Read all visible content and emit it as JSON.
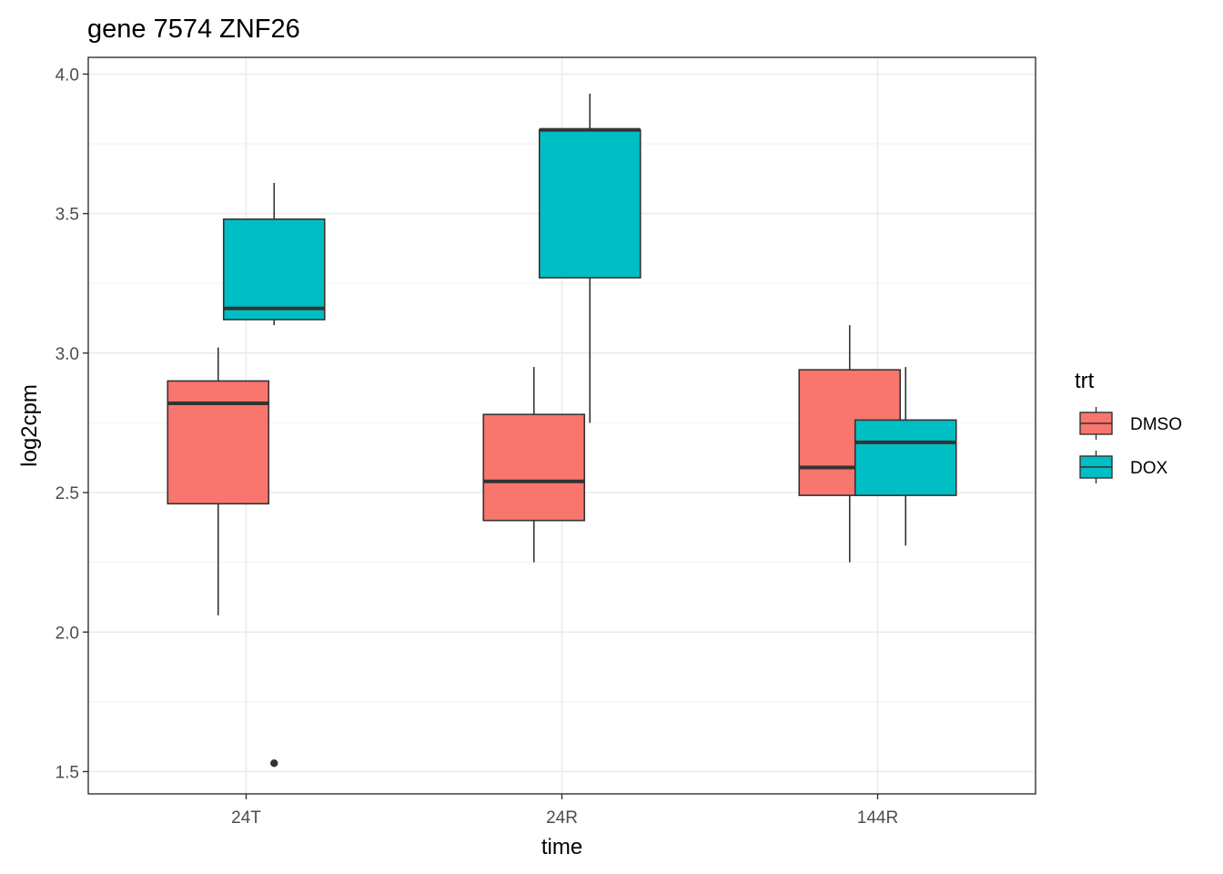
{
  "chart_data": {
    "type": "boxplot",
    "title": "gene 7574 ZNF26",
    "xlabel": "time",
    "ylabel": "log2cpm",
    "categories": [
      "24T",
      "24R",
      "144R"
    ],
    "ylim": [
      1.42,
      4.06
    ],
    "y_ticks": [
      1.5,
      2.0,
      2.5,
      3.0,
      3.5,
      4.0
    ],
    "y_tick_labels": [
      "1.5",
      "2.0",
      "2.5",
      "3.0",
      "3.5",
      "4.0"
    ],
    "grid": true,
    "legend": {
      "title": "trt",
      "placement": "right",
      "entries": [
        "DMSO",
        "DOX"
      ]
    },
    "series": [
      {
        "name": "DMSO",
        "color": "#F8766D",
        "boxes": [
          {
            "category": "24T",
            "whisker_low": 2.06,
            "q1": 2.46,
            "median": 2.82,
            "q3": 2.9,
            "whisker_high": 3.02,
            "outliers": []
          },
          {
            "category": "24R",
            "whisker_low": 2.25,
            "q1": 2.4,
            "median": 2.54,
            "q3": 2.78,
            "whisker_high": 2.95,
            "outliers": []
          },
          {
            "category": "144R",
            "whisker_low": 2.25,
            "q1": 2.49,
            "median": 2.59,
            "q3": 2.94,
            "whisker_high": 3.1,
            "outliers": []
          }
        ]
      },
      {
        "name": "DOX",
        "color": "#00BFC4",
        "boxes": [
          {
            "category": "24T",
            "whisker_low": 3.1,
            "q1": 3.12,
            "median": 3.16,
            "q3": 3.48,
            "whisker_high": 3.61,
            "outliers": [
              1.53
            ]
          },
          {
            "category": "24R",
            "whisker_low": 2.75,
            "q1": 3.27,
            "median": 3.8,
            "q3": 3.8,
            "whisker_high": 3.93,
            "outliers": []
          },
          {
            "category": "144R",
            "whisker_low": 2.31,
            "q1": 2.49,
            "median": 2.68,
            "q3": 2.76,
            "whisker_high": 2.95,
            "outliers": []
          }
        ]
      }
    ]
  }
}
